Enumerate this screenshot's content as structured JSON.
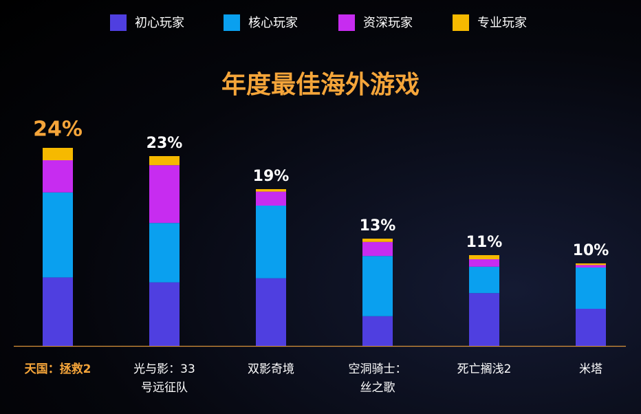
{
  "chart_data": {
    "type": "stacked_bar",
    "title": "年度最佳海外游戏",
    "categories": [
      "天国：拯救2",
      "光与影：33号远征队",
      "双影奇境",
      "空洞骑士：丝之歌",
      "死亡搁浅2",
      "米塔"
    ],
    "series": [
      {
        "name": "初心玩家",
        "color": "#4f3fe0",
        "values": [
          8.3,
          7.7,
          8.2,
          3.6,
          6.4,
          4.5
        ]
      },
      {
        "name": "核心玩家",
        "color": "#0aa0ef",
        "values": [
          10.3,
          7.2,
          8.8,
          7.3,
          3.2,
          5.0
        ]
      },
      {
        "name": "资深玩家",
        "color": "#c72cf0",
        "values": [
          3.9,
          7.0,
          1.7,
          1.7,
          0.9,
          0.3
        ]
      },
      {
        "name": "专业玩家",
        "color": "#f6b900",
        "values": [
          1.5,
          1.1,
          0.3,
          0.4,
          0.5,
          0.2
        ]
      }
    ],
    "totals": [
      24,
      23,
      19,
      13,
      11,
      10
    ],
    "total_labels": [
      "24%",
      "23%",
      "19%",
      "13%",
      "11%",
      "10%"
    ],
    "highlight_index": 0,
    "highlight_color": "#f5a53a"
  }
}
